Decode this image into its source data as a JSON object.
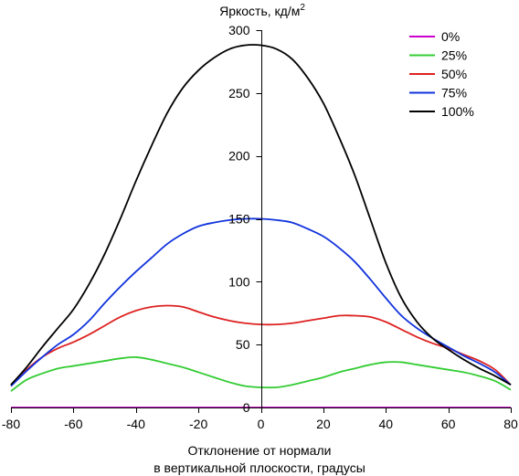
{
  "chart_data": {
    "type": "line",
    "title": "",
    "ylabel": "Яркость, кд/м",
    "ylabel_superscript": "2",
    "xlabel_lines": [
      "Отклонение от нормали",
      "в вертикальной плоскости, градусы"
    ],
    "xlim": [
      -80,
      80
    ],
    "ylim": [
      0,
      300
    ],
    "xticks": [
      -80,
      -60,
      -40,
      -20,
      0,
      20,
      40,
      60,
      80
    ],
    "yticks": [
      0,
      50,
      100,
      150,
      200,
      250,
      300
    ],
    "grid": false,
    "legend_position": "top-right",
    "series": [
      {
        "name": "0%",
        "color": "#cc00cc",
        "x": [
          -80,
          -60,
          -40,
          -20,
          0,
          20,
          40,
          60,
          80
        ],
        "y": [
          0,
          0,
          0,
          0,
          0,
          0,
          0,
          0,
          0
        ]
      },
      {
        "name": "25%",
        "color": "#33cc33",
        "x": [
          -80,
          -75,
          -70,
          -65,
          -60,
          -55,
          -50,
          -45,
          -40,
          -35,
          -30,
          -25,
          -20,
          -15,
          -10,
          -5,
          0,
          5,
          10,
          15,
          20,
          25,
          30,
          35,
          40,
          45,
          50,
          55,
          60,
          65,
          70,
          75,
          80
        ],
        "y": [
          13,
          22,
          27,
          31,
          33,
          35,
          37,
          39,
          40,
          38,
          35,
          32,
          28,
          24,
          20,
          17,
          16,
          16,
          18,
          21,
          24,
          28,
          31,
          34,
          36,
          36,
          34,
          32,
          30,
          28,
          25,
          21,
          14
        ]
      },
      {
        "name": "50%",
        "color": "#dd2222",
        "x": [
          -80,
          -75,
          -70,
          -65,
          -60,
          -55,
          -50,
          -45,
          -40,
          -35,
          -30,
          -25,
          -20,
          -15,
          -10,
          -5,
          0,
          5,
          10,
          15,
          20,
          25,
          30,
          35,
          40,
          45,
          50,
          55,
          60,
          65,
          70,
          75,
          80
        ],
        "y": [
          18,
          30,
          40,
          47,
          52,
          58,
          65,
          72,
          77,
          80,
          81,
          80,
          76,
          72,
          69,
          67,
          66,
          66,
          67,
          69,
          71,
          73,
          73,
          72,
          68,
          62,
          56,
          51,
          47,
          42,
          37,
          30,
          18
        ]
      },
      {
        "name": "75%",
        "color": "#1133dd",
        "x": [
          -80,
          -75,
          -70,
          -65,
          -60,
          -55,
          -50,
          -45,
          -40,
          -35,
          -30,
          -25,
          -20,
          -15,
          -10,
          -5,
          0,
          5,
          10,
          15,
          20,
          25,
          30,
          35,
          40,
          45,
          50,
          55,
          60,
          65,
          70,
          75,
          80
        ],
        "y": [
          17,
          29,
          40,
          50,
          58,
          69,
          83,
          96,
          108,
          119,
          130,
          138,
          144,
          147,
          149,
          150,
          150,
          149,
          147,
          142,
          136,
          127,
          116,
          102,
          87,
          73,
          63,
          55,
          48,
          41,
          35,
          28,
          18
        ]
      },
      {
        "name": "100%",
        "color": "#000000",
        "x": [
          -80,
          -75,
          -70,
          -65,
          -60,
          -55,
          -50,
          -45,
          -40,
          -35,
          -30,
          -25,
          -20,
          -15,
          -10,
          -5,
          0,
          5,
          10,
          15,
          20,
          25,
          30,
          35,
          40,
          45,
          50,
          55,
          60,
          65,
          70,
          75,
          80
        ],
        "y": [
          18,
          32,
          48,
          63,
          78,
          98,
          122,
          150,
          180,
          208,
          234,
          254,
          268,
          278,
          285,
          288,
          288,
          285,
          277,
          262,
          242,
          215,
          185,
          150,
          115,
          87,
          68,
          55,
          46,
          38,
          31,
          25,
          18
        ]
      }
    ]
  }
}
